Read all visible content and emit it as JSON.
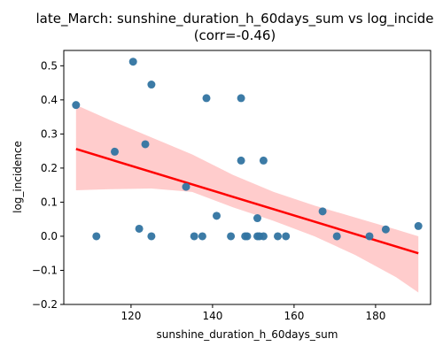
{
  "chart_data": {
    "type": "scatter",
    "title": "late_March: sunshine_duration_h_60days_sum vs log_incide",
    "subtitle": "(corr=-0.46)",
    "xlabel": "sunshine_duration_h_60days_sum",
    "ylabel": "log_incidence",
    "xlim": [
      103.5,
      193.5
    ],
    "ylim": [
      -0.2,
      0.545
    ],
    "x_ticks": [
      120,
      140,
      160,
      180
    ],
    "y_ticks": [
      -0.2,
      -0.1,
      0.0,
      0.1,
      0.2,
      0.3,
      0.4,
      0.5
    ],
    "x_tick_labels": [
      "120",
      "140",
      "160",
      "180"
    ],
    "y_tick_labels": [
      "−0.2",
      "−0.1",
      "0.0",
      "0.1",
      "0.2",
      "0.3",
      "0.4",
      "0.5"
    ],
    "grid": false,
    "legend": "none",
    "colors": {
      "points": "#3274a1",
      "regression_line": "#ff0000",
      "confidence_band": "#ffcccc"
    },
    "points": [
      {
        "x": 106.5,
        "y": 0.385
      },
      {
        "x": 111.5,
        "y": 0.0
      },
      {
        "x": 116.0,
        "y": 0.248
      },
      {
        "x": 120.5,
        "y": 0.512
      },
      {
        "x": 122.0,
        "y": 0.022
      },
      {
        "x": 123.5,
        "y": 0.27
      },
      {
        "x": 125.0,
        "y": 0.445
      },
      {
        "x": 125.0,
        "y": 0.0
      },
      {
        "x": 133.5,
        "y": 0.145
      },
      {
        "x": 135.5,
        "y": 0.0
      },
      {
        "x": 137.5,
        "y": 0.0
      },
      {
        "x": 138.5,
        "y": 0.405
      },
      {
        "x": 141.0,
        "y": 0.06
      },
      {
        "x": 144.5,
        "y": 0.0
      },
      {
        "x": 147.0,
        "y": 0.405
      },
      {
        "x": 147.0,
        "y": 0.222
      },
      {
        "x": 148.0,
        "y": 0.0
      },
      {
        "x": 148.5,
        "y": 0.0
      },
      {
        "x": 151.0,
        "y": 0.053
      },
      {
        "x": 151.0,
        "y": 0.0
      },
      {
        "x": 151.5,
        "y": 0.0
      },
      {
        "x": 152.5,
        "y": 0.0
      },
      {
        "x": 152.5,
        "y": 0.222
      },
      {
        "x": 156.0,
        "y": 0.0
      },
      {
        "x": 158.0,
        "y": 0.0
      },
      {
        "x": 167.0,
        "y": 0.073
      },
      {
        "x": 170.5,
        "y": 0.0
      },
      {
        "x": 178.5,
        "y": 0.0
      },
      {
        "x": 182.5,
        "y": 0.02
      },
      {
        "x": 190.5,
        "y": 0.03
      }
    ],
    "regression_line": [
      {
        "x": 106.5,
        "y": 0.256
      },
      {
        "x": 190.5,
        "y": -0.05
      }
    ],
    "confidence_band": {
      "x": [
        106.5,
        115,
        125,
        135,
        145,
        150,
        155,
        165,
        175,
        185,
        190.5
      ],
      "upper": [
        0.385,
        0.34,
        0.29,
        0.24,
        0.18,
        0.155,
        0.13,
        0.09,
        0.055,
        0.02,
        0.0
      ],
      "lower": [
        0.135,
        0.138,
        0.14,
        0.13,
        0.085,
        0.065,
        0.045,
        0.0,
        -0.055,
        -0.12,
        -0.165
      ]
    }
  }
}
